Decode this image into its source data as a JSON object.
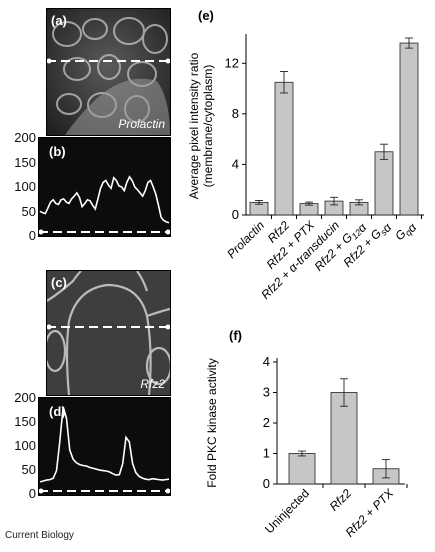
{
  "micrographs": [
    {
      "tag": "(a)",
      "label": "Prolactin"
    },
    {
      "tag": "(c)",
      "label": "Rfz2"
    }
  ],
  "profiles": [
    {
      "tag": "(b)",
      "yticks": [
        "200",
        "150",
        "100",
        "50",
        "0"
      ]
    },
    {
      "tag": "(d)",
      "yticks": [
        "200",
        "150",
        "100",
        "50",
        "0"
      ]
    }
  ],
  "chart_data": [
    {
      "panel": "(b)",
      "type": "line",
      "ylim": [
        0,
        200
      ],
      "y": [
        45,
        42,
        40,
        52,
        65,
        70,
        62,
        60,
        70,
        72,
        65,
        62,
        72,
        78,
        85,
        75,
        55,
        62,
        70,
        68,
        58,
        50,
        72,
        95,
        108,
        112,
        102,
        95,
        118,
        112,
        100,
        98,
        90,
        108,
        120,
        112,
        98,
        92,
        85,
        78,
        90,
        108,
        112,
        98,
        82,
        58,
        32,
        25,
        22,
        20
      ]
    },
    {
      "panel": "(d)",
      "type": "line",
      "ylim": [
        0,
        200
      ],
      "y": [
        20,
        22,
        24,
        25,
        28,
        45,
        110,
        185,
        160,
        90,
        70,
        62,
        58,
        56,
        55,
        52,
        50,
        48,
        46,
        45,
        44,
        42,
        38,
        35,
        36,
        60,
        118,
        108,
        60,
        40,
        32,
        28,
        26,
        25,
        27,
        26,
        25,
        24,
        25,
        26
      ]
    },
    {
      "panel": "(e)",
      "type": "bar",
      "ylabel": "Average pixel intensity ratio\n(membrane/cytoplasm)",
      "ylim": [
        0,
        14
      ],
      "yticks": [
        "0",
        "4",
        "8",
        "12"
      ],
      "categories": [
        "Prolactin",
        "Rfz2",
        "Rfz2 + PTX",
        "Rfz2 + α-transducin",
        "Rfz2 + G12α",
        "Rfz2 + Gsα",
        "Gqα"
      ],
      "values": [
        1.0,
        10.5,
        0.9,
        1.1,
        1.0,
        5.0,
        13.6
      ],
      "errors": [
        0.15,
        0.85,
        0.12,
        0.3,
        0.2,
        0.6,
        0.4
      ]
    },
    {
      "panel": "(f)",
      "type": "bar",
      "ylabel": "Fold PKC kinase activity",
      "ylim": [
        0,
        4
      ],
      "yticks": [
        "0",
        "1",
        "2",
        "3",
        "4"
      ],
      "categories": [
        "Uninjected",
        "Rfz2",
        "Rfz2 + PTX"
      ],
      "values": [
        1.0,
        3.0,
        0.5
      ],
      "errors": [
        0.08,
        0.45,
        0.3
      ]
    }
  ],
  "footer": "Current Biology"
}
